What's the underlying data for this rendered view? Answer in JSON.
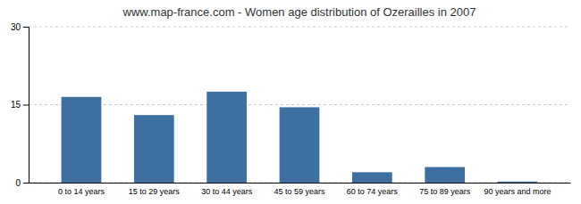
{
  "chart_data": {
    "type": "bar",
    "title": "www.map-france.com - Women age distribution of Ozerailles in 2007",
    "categories": [
      "0 to 14 years",
      "15 to 29 years",
      "30 to 44 years",
      "45 to 59 years",
      "60 to 74 years",
      "75 to 89 years",
      "90 years and more"
    ],
    "values": [
      16.5,
      13.0,
      17.5,
      14.5,
      2.0,
      3.0,
      0.2
    ],
    "color": "#3d6fa0",
    "ylim": [
      0,
      30
    ],
    "yticks": [
      0,
      15,
      30
    ],
    "grid": true
  }
}
